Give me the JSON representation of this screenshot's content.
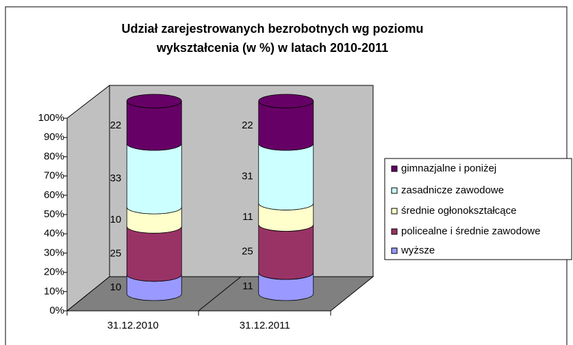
{
  "chart_data": {
    "type": "stacked-bar-3d",
    "title": [
      "Udział zarejestrowanych bezrobotnych wg poziomu",
      "wykształcenia (w %) w latach 2010-2011"
    ],
    "categories": [
      "31.12.2010",
      "31.12.2011"
    ],
    "series": [
      {
        "name": "wyższe",
        "color": "#9999ff",
        "values": [
          10,
          11
        ]
      },
      {
        "name": "policealne i średnie zawodowe",
        "color": "#993366",
        "values": [
          25,
          25
        ]
      },
      {
        "name": "średnie ogłonokształcące",
        "color": "#ffffcc",
        "values": [
          10,
          11
        ]
      },
      {
        "name": "zasadnicze zawodowe",
        "color": "#ccffff",
        "values": [
          33,
          31
        ]
      },
      {
        "name": "gimnazjalne i poniżej",
        "color": "#660066",
        "values": [
          22,
          22
        ]
      }
    ],
    "ylim": [
      0,
      100
    ],
    "yticks": [
      {
        "value": 0,
        "label": "0%"
      },
      {
        "value": 10,
        "label": "10%"
      },
      {
        "value": 20,
        "label": "20%"
      },
      {
        "value": 30,
        "label": "30%"
      },
      {
        "value": 40,
        "label": "40%"
      },
      {
        "value": 50,
        "label": "50%"
      },
      {
        "value": 60,
        "label": "60%"
      },
      {
        "value": 70,
        "label": "70%"
      },
      {
        "value": 80,
        "label": "80%"
      },
      {
        "value": 90,
        "label": "90%"
      },
      {
        "value": 100,
        "label": "100%"
      }
    ],
    "grid": false,
    "legend": "right"
  }
}
